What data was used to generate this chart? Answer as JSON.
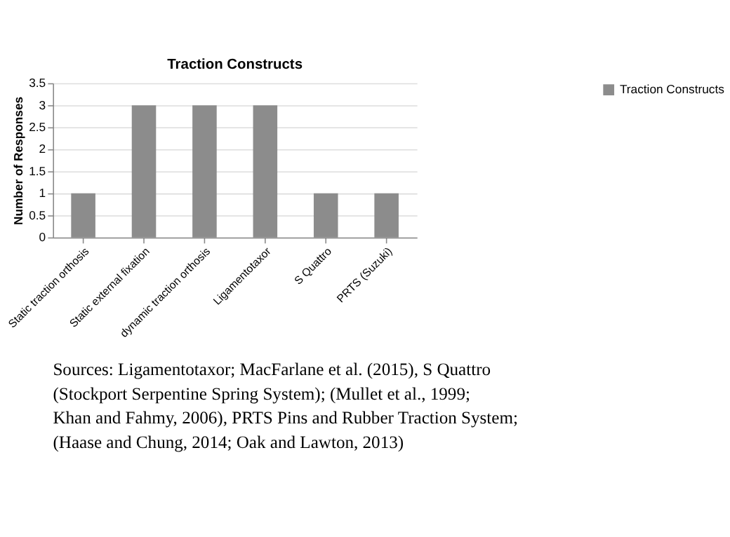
{
  "chart_data": {
    "type": "bar",
    "title": "Traction Constructs",
    "ylabel": "Number of Responses",
    "categories": [
      "Static traction orthosis",
      "Static external fixation",
      "dynamic traction orthosis",
      "Ligamentotaxor",
      "S Quattro",
      "PRTS (Suzuki)"
    ],
    "series": [
      {
        "name": "Traction Constructs",
        "color": "#8c8c8c",
        "values": [
          1,
          3,
          3,
          3,
          1,
          1
        ]
      }
    ],
    "ylim": [
      0,
      3.5
    ],
    "yticks": [
      0,
      0.5,
      1,
      1.5,
      2,
      2.5,
      3,
      3.5
    ],
    "grid": "y",
    "legend": "right",
    "annotations": [
      "Sources: Ligamentotaxor; MacFarlane et al. (2015), S Quattro (Stockport Serpentine Spring System); (Mullet et al., 1999; Khan and Fahmy, 2006), PRTS Pins and Rubber Traction System; (Haase and Chung, 2014; Oak and Lawton, 2013)"
    ]
  }
}
